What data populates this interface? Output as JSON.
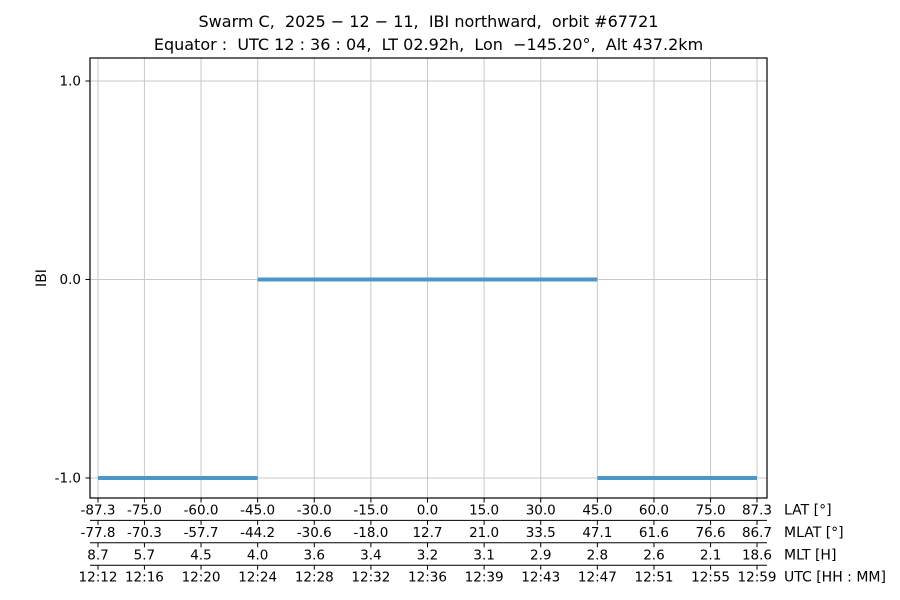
{
  "chart_data": {
    "type": "line",
    "title": "Swarm C,  2025 − 12 − 11,  IBI northward,  orbit #67721",
    "subtitle": "Equator :  UTC 12 : 36 : 04,  LT 02.92h,  Lon  −145.20°,  Alt 437.2km",
    "ylabel": "IBI",
    "ylim": [
      -1.101,
      1.116
    ],
    "xlim": [
      -89.42,
      89.95
    ],
    "grid": true,
    "legend": "none",
    "line_color": "#4d96ca",
    "line_width": 4,
    "yticks": [
      {
        "value": 1.0,
        "label": "1.0"
      },
      {
        "value": 0.0,
        "label": "0.0"
      },
      {
        "value": -1.0,
        "label": "-1.0"
      }
    ],
    "x_tick_lat_positions": [
      -87.3,
      -75.0,
      -60.0,
      -45.0,
      -30.0,
      -15.0,
      0.0,
      15.0,
      30.0,
      45.0,
      60.0,
      75.0,
      87.3
    ],
    "series": [
      {
        "name": "IBI",
        "segments": [
          {
            "y": -1.0,
            "lat_start": -87.3,
            "lat_end": -45.0
          },
          {
            "y": 0.0,
            "lat_start": -45.0,
            "lat_end": 45.0
          },
          {
            "y": -1.0,
            "lat_start": 45.0,
            "lat_end": 87.3
          }
        ]
      }
    ],
    "x_axis_rows": [
      {
        "id": "lat",
        "label": "LAT [°]",
        "ticks": [
          "-87.3",
          "-75.0",
          "-60.0",
          "-45.0",
          "-30.0",
          "-15.0",
          "0.0",
          "15.0",
          "30.0",
          "45.0",
          "60.0",
          "75.0",
          "87.3"
        ]
      },
      {
        "id": "mlat",
        "label": "MLAT [°]",
        "ticks": [
          "-77.8",
          "-70.3",
          "-57.7",
          "-44.2",
          "-30.6",
          "-18.0",
          "12.7",
          "21.0",
          "33.5",
          "47.1",
          "61.6",
          "76.6",
          "86.7"
        ]
      },
      {
        "id": "mlt",
        "label": "MLT [H]",
        "ticks": [
          "8.7",
          "5.7",
          "4.5",
          "4.0",
          "3.6",
          "3.4",
          "3.2",
          "3.1",
          "2.9",
          "2.8",
          "2.6",
          "2.1",
          "18.6"
        ]
      },
      {
        "id": "utc",
        "label": "UTC [HH : MM]",
        "ticks": [
          "12:12",
          "12:16",
          "12:20",
          "12:24",
          "12:28",
          "12:32",
          "12:36",
          "12:39",
          "12:43",
          "12:47",
          "12:51",
          "12:55",
          "12:59"
        ]
      }
    ],
    "colors": {
      "grid": "#c9c9c9",
      "axis": "#000000",
      "text": "#000000"
    }
  }
}
